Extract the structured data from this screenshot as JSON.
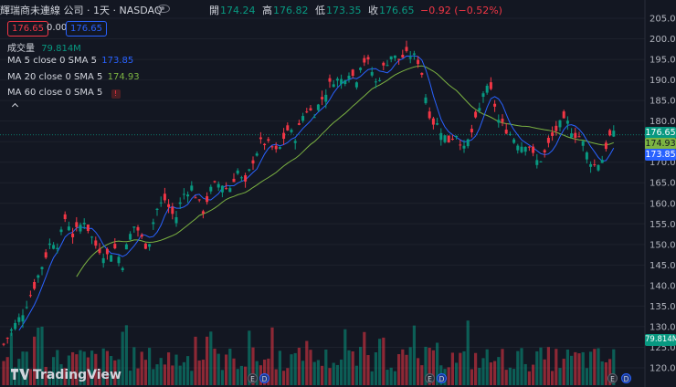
{
  "header": {
    "title": "輝瑞商未連線 公司 · 1天 · NASDAQ",
    "open_label": "開",
    "open": "174.24",
    "high_label": "高",
    "high": "176.82",
    "low_label": "低",
    "low": "173.35",
    "close_label": "收",
    "close": "176.65",
    "change": "−0.92 (−0.52%)"
  },
  "trade": {
    "sell": "176.65",
    "spread": "0.00",
    "buy": "176.65"
  },
  "legend": {
    "volume_name": "成交量",
    "volume_value": "79.814M",
    "ma5_name": "MA",
    "ma5_params": "5 close 0 SMA 5",
    "ma5_value": "173.85",
    "ma20_name": "MA",
    "ma20_params": "20 close 0 SMA 5",
    "ma20_value": "174.93",
    "ma60_name": "MA",
    "ma60_params": "60 close 0 SMA 5",
    "ma60_badge": "!"
  },
  "price_tags": {
    "last": "176.65",
    "ma20": "174.93",
    "ma5": "173.85",
    "volume": "79.814M"
  },
  "events": [
    "E",
    "D",
    "E",
    "D",
    "E",
    "D"
  ],
  "brand": "TradingView",
  "colors": {
    "up": "#089981",
    "down": "#f23645",
    "ma5": "#2962ff",
    "ma20": "#7cb342",
    "bg": "#131722",
    "grid": "#1e222d"
  },
  "chart_data": {
    "type": "candlestick",
    "ylim": [
      118,
      207
    ],
    "y_ticks": [
      205,
      200,
      195,
      190,
      185,
      180,
      175,
      170,
      165,
      160,
      155,
      150,
      145,
      140,
      135,
      130,
      125,
      120
    ],
    "anchors": [
      [
        0,
        124
      ],
      [
        12,
        129
      ],
      [
        24,
        133
      ],
      [
        36,
        139
      ],
      [
        48,
        146
      ],
      [
        56,
        151
      ],
      [
        64,
        150
      ],
      [
        72,
        157
      ],
      [
        80,
        152
      ],
      [
        92,
        156
      ],
      [
        104,
        150
      ],
      [
        116,
        147
      ],
      [
        126,
        149
      ],
      [
        134,
        145
      ],
      [
        140,
        151
      ],
      [
        148,
        155
      ],
      [
        156,
        151
      ],
      [
        162,
        149
      ],
      [
        170,
        158
      ],
      [
        180,
        161
      ],
      [
        192,
        156
      ],
      [
        200,
        162
      ],
      [
        210,
        164
      ],
      [
        222,
        158
      ],
      [
        232,
        164
      ],
      [
        242,
        165
      ],
      [
        250,
        163
      ],
      [
        260,
        168
      ],
      [
        268,
        164
      ],
      [
        276,
        170
      ],
      [
        286,
        175
      ],
      [
        296,
        174
      ],
      [
        304,
        172
      ],
      [
        314,
        178
      ],
      [
        324,
        176
      ],
      [
        334,
        183
      ],
      [
        344,
        182
      ],
      [
        354,
        186
      ],
      [
        364,
        190
      ],
      [
        374,
        190
      ],
      [
        382,
        192
      ],
      [
        390,
        190
      ],
      [
        396,
        195
      ],
      [
        404,
        194
      ],
      [
        412,
        189
      ],
      [
        420,
        193
      ],
      [
        428,
        196
      ],
      [
        436,
        195
      ],
      [
        444,
        196
      ],
      [
        452,
        196
      ],
      [
        460,
        194
      ],
      [
        466,
        186
      ],
      [
        472,
        180
      ],
      [
        480,
        179
      ],
      [
        490,
        175
      ],
      [
        500,
        177
      ],
      [
        508,
        173
      ],
      [
        516,
        177
      ],
      [
        524,
        182
      ],
      [
        530,
        188
      ],
      [
        538,
        187
      ],
      [
        546,
        180
      ],
      [
        554,
        178
      ],
      [
        562,
        176
      ],
      [
        570,
        174
      ],
      [
        578,
        175
      ],
      [
        586,
        170
      ],
      [
        594,
        171
      ],
      [
        604,
        176
      ],
      [
        612,
        179
      ],
      [
        620,
        180
      ],
      [
        628,
        177
      ],
      [
        636,
        176
      ],
      [
        644,
        171
      ],
      [
        652,
        169
      ],
      [
        660,
        171
      ],
      [
        666,
        176
      ],
      [
        672,
        176.65
      ]
    ],
    "volume_ylim": [
      0,
      110
    ]
  }
}
